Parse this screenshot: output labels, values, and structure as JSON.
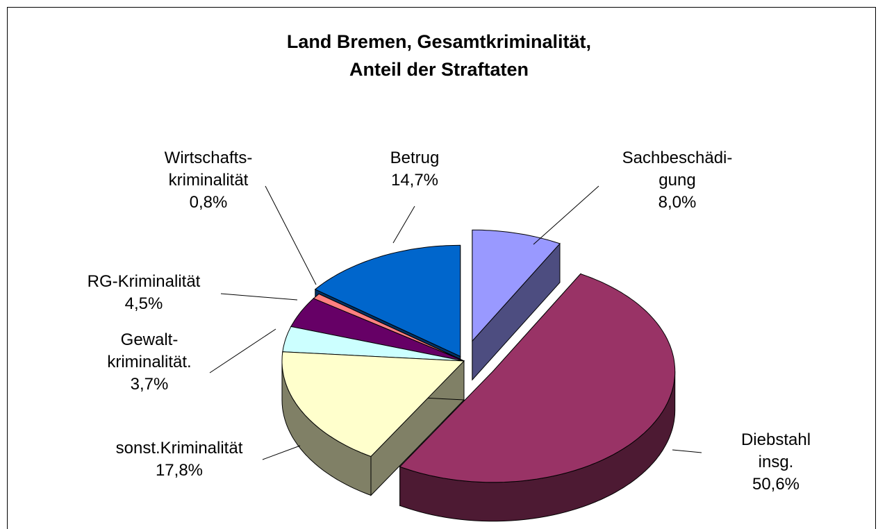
{
  "chart_data": {
    "type": "pie3d",
    "title": "Land Bremen, Gesamtkriminalität,\nAnteil der Straftaten",
    "categories": [
      "Sachbeschädi-\ngung",
      "Diebstahl insg.",
      "sonst.Kriminalität",
      "Gewalt-\nkriminalität.",
      "RG-Kriminalität",
      "Wirtschafts-\nkriminalität",
      "Betrug"
    ],
    "values": [
      8.0,
      50.6,
      17.8,
      3.7,
      4.5,
      0.8,
      14.7
    ],
    "value_labels": [
      "8,0%",
      "50,6%",
      "17,8%",
      "3,7%",
      "4,5%",
      "0,8%",
      "14,7%"
    ],
    "colors": [
      "#9999ff",
      "#993366",
      "#ffffcc",
      "#ccffff",
      "#660066",
      "#ff8080",
      "#0066cc"
    ]
  }
}
